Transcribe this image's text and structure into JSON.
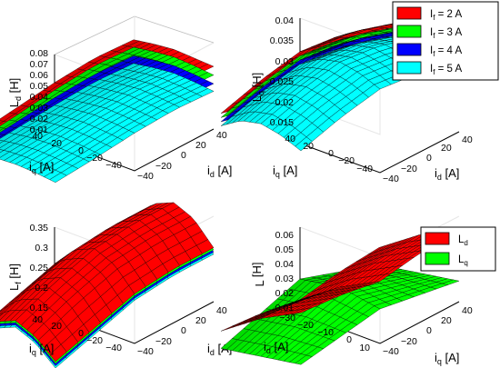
{
  "charts": [
    {
      "type": "surface3d",
      "zlabel": "L",
      "zlabel_sub": "d",
      "zlabel_unit": " [H]",
      "xlabel": "i",
      "xlabel_sub": "d",
      "xlabel_unit": " [A]",
      "ylabel": "i",
      "ylabel_sub": "q",
      "ylabel_unit": " [A]",
      "xlim": [
        -40,
        40
      ],
      "ylim": [
        -40,
        40
      ],
      "zlim": [
        0,
        0.08
      ],
      "xticks": [
        "−40",
        "−20",
        "0",
        "20",
        "40"
      ],
      "yticks": [
        "40",
        "20",
        "0",
        "−20",
        "−40"
      ],
      "zticks": [
        "0.01",
        "0.02",
        "0.03",
        "0.04",
        "0.05",
        "0.06",
        "0.07",
        "0.08"
      ],
      "series": [
        {
          "color": "#ff0000",
          "label_main": "I",
          "label_sub": "f",
          "label_rest": " = 2 A",
          "z": [
            [
              0.046,
              0.05,
              0.056,
              0.06,
              0.058
            ],
            [
              0.048,
              0.053,
              0.058,
              0.061,
              0.059
            ],
            [
              0.049,
              0.054,
              0.059,
              0.062,
              0.06
            ],
            [
              0.048,
              0.052,
              0.057,
              0.06,
              0.058
            ],
            [
              0.044,
              0.049,
              0.054,
              0.057,
              0.055
            ]
          ]
        },
        {
          "color": "#00ff00",
          "label_main": "I",
          "label_sub": "f",
          "label_rest": " = 3 A",
          "z": [
            [
              0.04,
              0.044,
              0.049,
              0.052,
              0.05
            ],
            [
              0.042,
              0.047,
              0.052,
              0.054,
              0.052
            ],
            [
              0.043,
              0.048,
              0.053,
              0.055,
              0.053
            ],
            [
              0.042,
              0.046,
              0.051,
              0.053,
              0.051
            ],
            [
              0.038,
              0.042,
              0.047,
              0.05,
              0.048
            ]
          ]
        },
        {
          "color": "#0000ff",
          "label_main": "I",
          "label_sub": "f",
          "label_rest": " = 4 A",
          "z": [
            [
              0.034,
              0.038,
              0.042,
              0.044,
              0.042
            ],
            [
              0.036,
              0.04,
              0.044,
              0.046,
              0.044
            ],
            [
              0.037,
              0.041,
              0.045,
              0.047,
              0.045
            ],
            [
              0.036,
              0.039,
              0.043,
              0.045,
              0.043
            ],
            [
              0.032,
              0.036,
              0.04,
              0.042,
              0.04
            ]
          ]
        },
        {
          "color": "#00ffff",
          "label_main": "I",
          "label_sub": "f",
          "label_rest": " = 5 A",
          "z": [
            [
              0.028,
              0.031,
              0.035,
              0.037,
              0.035
            ],
            [
              0.03,
              0.033,
              0.037,
              0.039,
              0.037
            ],
            [
              0.031,
              0.034,
              0.038,
              0.04,
              0.038
            ],
            [
              0.03,
              0.033,
              0.036,
              0.038,
              0.036
            ],
            [
              0.027,
              0.03,
              0.033,
              0.035,
              0.033
            ]
          ]
        }
      ]
    },
    {
      "type": "surface3d",
      "zlabel": "L",
      "zlabel_sub": "q",
      "zlabel_unit": " [H]",
      "xlabel": "i",
      "xlabel_sub": "d",
      "xlabel_unit": " [A]",
      "ylabel": "i",
      "ylabel_sub": "q",
      "ylabel_unit": " [A]",
      "xlim": [
        -40,
        40
      ],
      "ylim": [
        -40,
        40
      ],
      "zlim": [
        0.01,
        0.04
      ],
      "xticks": [
        "−40",
        "−20",
        "0",
        "20",
        "40"
      ],
      "yticks": [
        "40",
        "20",
        "0",
        "−20",
        "−40"
      ],
      "zticks": [
        "0.015",
        "0.02",
        "0.025",
        "0.03",
        "0.035",
        "0.04"
      ],
      "series": [
        {
          "color": "#ff0000",
          "label_main": "I",
          "label_sub": "f",
          "label_rest": " = 2 A",
          "z": [
            [
              0.028,
              0.031,
              0.033,
              0.032,
              0.029
            ],
            [
              0.03,
              0.033,
              0.035,
              0.034,
              0.031
            ],
            [
              0.031,
              0.034,
              0.036,
              0.035,
              0.032
            ],
            [
              0.03,
              0.033,
              0.035,
              0.034,
              0.031
            ],
            [
              0.027,
              0.03,
              0.032,
              0.031,
              0.028
            ]
          ]
        },
        {
          "color": "#00ff00",
          "label_main": "I",
          "label_sub": "f",
          "label_rest": " = 3 A",
          "z": [
            [
              0.027,
              0.03,
              0.032,
              0.031,
              0.028
            ],
            [
              0.029,
              0.032,
              0.034,
              0.033,
              0.03
            ],
            [
              0.03,
              0.033,
              0.035,
              0.034,
              0.031
            ],
            [
              0.029,
              0.032,
              0.034,
              0.033,
              0.03
            ],
            [
              0.026,
              0.029,
              0.031,
              0.03,
              0.027
            ]
          ]
        },
        {
          "color": "#0000ff",
          "label_main": "I",
          "label_sub": "f",
          "label_rest": " = 4 A",
          "z": [
            [
              0.026,
              0.029,
              0.031,
              0.03,
              0.027
            ],
            [
              0.028,
              0.031,
              0.033,
              0.032,
              0.029
            ],
            [
              0.029,
              0.032,
              0.034,
              0.033,
              0.03
            ],
            [
              0.028,
              0.031,
              0.033,
              0.032,
              0.029
            ],
            [
              0.025,
              0.028,
              0.03,
              0.029,
              0.026
            ]
          ]
        },
        {
          "color": "#00ffff",
          "label_main": "I",
          "label_sub": "f",
          "label_rest": " = 5 A",
          "z": [
            [
              0.025,
              0.028,
              0.03,
              0.029,
              0.026
            ],
            [
              0.027,
              0.03,
              0.032,
              0.031,
              0.028
            ],
            [
              0.028,
              0.031,
              0.033,
              0.032,
              0.029
            ],
            [
              0.027,
              0.03,
              0.032,
              0.031,
              0.028
            ],
            [
              0.024,
              0.027,
              0.029,
              0.028,
              0.025
            ]
          ]
        }
      ]
    },
    {
      "type": "surface3d",
      "zlabel": "L",
      "zlabel_sub": "f",
      "zlabel_unit": " [H]",
      "xlabel": "i",
      "xlabel_sub": "d",
      "xlabel_unit": " [A]",
      "ylabel": "i",
      "ylabel_sub": "q",
      "ylabel_unit": " [A]",
      "xlim": [
        -40,
        40
      ],
      "ylim": [
        -40,
        40
      ],
      "zlim": [
        0.15,
        0.35
      ],
      "xticks": [
        "−40",
        "−20",
        "0",
        "20",
        "40"
      ],
      "yticks": [
        "40",
        "20",
        "0",
        "−20",
        "−40"
      ],
      "zticks": [
        "0.15",
        "0.2",
        "0.25",
        "0.3",
        "0.35"
      ],
      "series": [
        {
          "color": "#00ffff",
          "z": [
            [
              0.19,
              0.22,
              0.25,
              0.26,
              0.26
            ],
            [
              0.23,
              0.27,
              0.3,
              0.31,
              0.31
            ],
            [
              0.25,
              0.29,
              0.32,
              0.33,
              0.33
            ],
            [
              0.23,
              0.27,
              0.3,
              0.31,
              0.31
            ],
            [
              0.19,
              0.22,
              0.25,
              0.26,
              0.26
            ]
          ]
        },
        {
          "color": "#0000ff",
          "z": [
            [
              0.195,
              0.225,
              0.255,
              0.265,
              0.265
            ],
            [
              0.235,
              0.275,
              0.305,
              0.315,
              0.315
            ],
            [
              0.255,
              0.295,
              0.325,
              0.335,
              0.335
            ],
            [
              0.235,
              0.275,
              0.305,
              0.315,
              0.315
            ],
            [
              0.195,
              0.225,
              0.255,
              0.265,
              0.265
            ]
          ]
        },
        {
          "color": "#00ff00",
          "z": [
            [
              0.2,
              0.23,
              0.26,
              0.27,
              0.27
            ],
            [
              0.24,
              0.28,
              0.31,
              0.32,
              0.32
            ],
            [
              0.26,
              0.3,
              0.33,
              0.34,
              0.34
            ],
            [
              0.24,
              0.28,
              0.31,
              0.32,
              0.32
            ],
            [
              0.2,
              0.23,
              0.26,
              0.27,
              0.27
            ]
          ]
        },
        {
          "color": "#ff0000",
          "z": [
            [
              0.205,
              0.235,
              0.265,
              0.275,
              0.275
            ],
            [
              0.245,
              0.285,
              0.315,
              0.325,
              0.325
            ],
            [
              0.265,
              0.305,
              0.335,
              0.345,
              0.345
            ],
            [
              0.245,
              0.285,
              0.315,
              0.325,
              0.325
            ],
            [
              0.205,
              0.235,
              0.265,
              0.275,
              0.275
            ]
          ]
        }
      ]
    },
    {
      "type": "surface3d",
      "zlabel": "L",
      "zlabel_sub": "",
      "zlabel_unit": " [H]",
      "xlabel": "i",
      "xlabel_sub": "q",
      "xlabel_unit": " [A]",
      "ylabel": "i",
      "ylabel_sub": "d",
      "ylabel_unit": " [A]",
      "xlim": [
        -40,
        40
      ],
      "ylim": [
        -30,
        10
      ],
      "zlim": [
        0.01,
        0.06
      ],
      "xticks": [
        "−40",
        "−20",
        "0",
        "20",
        "40"
      ],
      "yticks": [
        "−30",
        "−20",
        "−10",
        "0",
        "10"
      ],
      "zticks": [
        "0.01",
        "0.02",
        "0.03",
        "0.04",
        "0.05",
        "0.06"
      ],
      "series": [
        {
          "color": "#00ff00",
          "label_main": "L",
          "label_sub": "q",
          "label_rest": "",
          "z": [
            [
              0.022,
              0.026,
              0.03,
              0.026,
              0.022
            ],
            [
              0.02,
              0.026,
              0.032,
              0.026,
              0.02
            ],
            [
              0.018,
              0.026,
              0.034,
              0.026,
              0.018
            ],
            [
              0.016,
              0.024,
              0.032,
              0.024,
              0.016
            ],
            [
              0.014,
              0.022,
              0.03,
              0.022,
              0.014
            ]
          ]
        },
        {
          "color": "#ff0000",
          "label_main": "L",
          "label_sub": "d",
          "label_rest": "",
          "z": [
            [
              0.052,
              0.05,
              0.046,
              0.05,
              0.052
            ],
            [
              0.046,
              0.044,
              0.04,
              0.044,
              0.046
            ],
            [
              0.04,
              0.038,
              0.034,
              0.038,
              0.04
            ],
            [
              0.032,
              0.03,
              0.026,
              0.03,
              0.032
            ],
            [
              0.024,
              0.022,
              0.018,
              0.022,
              0.024
            ]
          ]
        }
      ]
    }
  ]
}
